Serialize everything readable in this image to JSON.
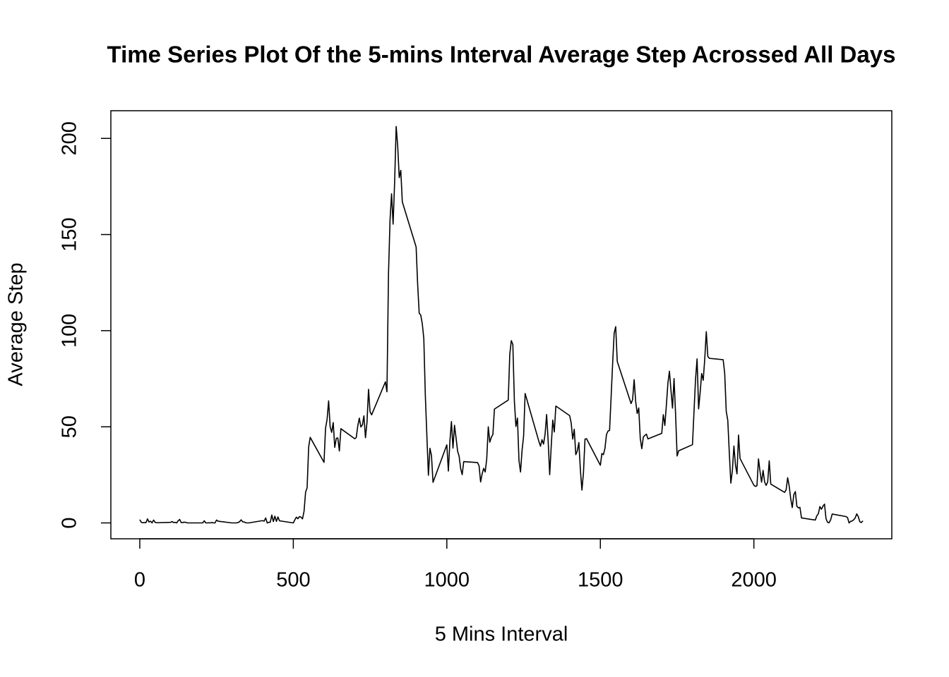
{
  "chart_data": {
    "type": "line",
    "title": "Time Series Plot Of the 5-mins Interval Average Step Acrossed All Days",
    "x_label": "5 Mins Interval",
    "y_label": "Average Step",
    "x": [
      0,
      5,
      10,
      15,
      20,
      25,
      30,
      35,
      40,
      45,
      50,
      55,
      100,
      105,
      110,
      115,
      120,
      125,
      130,
      135,
      140,
      145,
      150,
      155,
      200,
      205,
      210,
      215,
      220,
      225,
      230,
      235,
      240,
      245,
      250,
      255,
      300,
      305,
      310,
      315,
      320,
      325,
      330,
      335,
      340,
      345,
      350,
      355,
      400,
      405,
      410,
      415,
      420,
      425,
      430,
      435,
      440,
      445,
      450,
      455,
      500,
      505,
      510,
      515,
      520,
      525,
      530,
      535,
      540,
      545,
      550,
      555,
      600,
      605,
      610,
      615,
      620,
      625,
      630,
      635,
      640,
      645,
      650,
      655,
      700,
      705,
      710,
      715,
      720,
      725,
      730,
      735,
      740,
      745,
      750,
      755,
      800,
      805,
      810,
      815,
      820,
      825,
      830,
      835,
      840,
      845,
      850,
      855,
      900,
      905,
      910,
      915,
      920,
      925,
      930,
      935,
      940,
      945,
      950,
      955,
      1000,
      1005,
      1010,
      1015,
      1020,
      1025,
      1030,
      1035,
      1040,
      1045,
      1050,
      1055,
      1100,
      1105,
      1110,
      1115,
      1120,
      1125,
      1130,
      1135,
      1140,
      1145,
      1150,
      1155,
      1200,
      1205,
      1210,
      1215,
      1220,
      1225,
      1230,
      1235,
      1240,
      1245,
      1250,
      1255,
      1300,
      1305,
      1310,
      1315,
      1320,
      1325,
      1330,
      1335,
      1340,
      1345,
      1350,
      1355,
      1400,
      1405,
      1410,
      1415,
      1420,
      1425,
      1430,
      1435,
      1440,
      1445,
      1450,
      1455,
      1500,
      1505,
      1510,
      1515,
      1520,
      1525,
      1530,
      1535,
      1540,
      1545,
      1550,
      1555,
      1600,
      1605,
      1610,
      1615,
      1620,
      1625,
      1630,
      1635,
      1640,
      1645,
      1650,
      1655,
      1700,
      1705,
      1710,
      1715,
      1720,
      1725,
      1730,
      1735,
      1740,
      1745,
      1750,
      1755,
      1800,
      1805,
      1810,
      1815,
      1820,
      1825,
      1830,
      1835,
      1840,
      1845,
      1850,
      1855,
      1900,
      1905,
      1910,
      1915,
      1920,
      1925,
      1930,
      1935,
      1940,
      1945,
      1950,
      1955,
      2000,
      2005,
      2010,
      2015,
      2020,
      2025,
      2030,
      2035,
      2040,
      2045,
      2050,
      2055,
      2100,
      2105,
      2110,
      2115,
      2120,
      2125,
      2130,
      2135,
      2140,
      2145,
      2150,
      2155,
      2200,
      2205,
      2210,
      2215,
      2220,
      2225,
      2230,
      2235,
      2240,
      2245,
      2250,
      2255,
      2300,
      2305,
      2310,
      2315,
      2320,
      2325,
      2330,
      2335,
      2340,
      2345,
      2350,
      2355
    ],
    "series": [
      {
        "name": "Average Step",
        "color": "#000000",
        "values": [
          1.7,
          0.3,
          0.1,
          0.2,
          0.1,
          2.1,
          0.5,
          0.9,
          0,
          1.5,
          0.3,
          0.1,
          0.3,
          0.7,
          0.2,
          0.3,
          0,
          1.1,
          1.8,
          0.2,
          0.2,
          0.4,
          0.3,
          0,
          0,
          0,
          1.1,
          0,
          0,
          0.1,
          0,
          0.2,
          0,
          0,
          1.5,
          0.9,
          0,
          0,
          0,
          0,
          0.2,
          0.6,
          1.6,
          0.6,
          0.5,
          0.1,
          0,
          0,
          1.2,
          0.9,
          2.6,
          0,
          0.3,
          0.4,
          4.1,
          0.7,
          3.5,
          0.8,
          3.1,
          1.1,
          0,
          1.6,
          3.0,
          2.2,
          3.3,
          3.0,
          2.1,
          6.1,
          16.0,
          18.3,
          39.5,
          44.5,
          31.5,
          49.3,
          53.8,
          63.5,
          50.0,
          47.1,
          52.2,
          39.3,
          44.0,
          44.2,
          37.4,
          49.0,
          43.8,
          44.4,
          50.5,
          54.5,
          49.9,
          51.0,
          55.7,
          44.3,
          52.3,
          69.5,
          57.8,
          56.2,
          73.4,
          68.2,
          129.4,
          157.5,
          171.2,
          155.4,
          177.3,
          206.2,
          195.9,
          179.6,
          183.4,
          167.0,
          143.5,
          124.0,
          109.1,
          108.1,
          103.7,
          96.0,
          66.2,
          45.2,
          24.8,
          38.8,
          35.0,
          21.1,
          40.6,
          27.0,
          42.4,
          52.7,
          38.9,
          50.8,
          44.3,
          37.4,
          34.7,
          28.3,
          25.1,
          31.9,
          31.4,
          29.7,
          21.3,
          25.5,
          28.4,
          26.5,
          33.4,
          50.0,
          42.0,
          44.6,
          46.0,
          59.2,
          63.9,
          87.7,
          94.8,
          92.8,
          63.4,
          50.2,
          54.5,
          32.4,
          26.5,
          37.7,
          45.1,
          67.3,
          42.3,
          39.9,
          43.3,
          41.0,
          46.2,
          56.4,
          42.8,
          25.1,
          40.0,
          53.5,
          47.3,
          60.8,
          55.8,
          52.0,
          43.6,
          48.7,
          35.5,
          37.5,
          41.8,
          27.5,
          17.1,
          26.1,
          43.6,
          43.8,
          30.0,
          36.1,
          35.5,
          38.8,
          46.0,
          47.8,
          48.1,
          65.3,
          82.9,
          98.7,
          102.1,
          84.0,
          62.1,
          64.1,
          74.5,
          63.2,
          56.9,
          59.8,
          43.9,
          38.6,
          44.7,
          45.5,
          46.2,
          43.7,
          46.6,
          56.3,
          50.7,
          61.2,
          72.7,
          78.9,
          68.9,
          59.7,
          75.1,
          56.5,
          34.8,
          37.5,
          40.7,
          58.0,
          74.7,
          85.3,
          59.3,
          67.8,
          77.7,
          74.2,
          85.3,
          99.5,
          86.6,
          85.6,
          84.9,
          77.8,
          58.0,
          53.4,
          36.3,
          20.7,
          27.4,
          40.0,
          30.2,
          25.5,
          45.7,
          33.5,
          19.6,
          19.0,
          19.3,
          33.3,
          26.8,
          21.2,
          27.3,
          21.3,
          19.5,
          21.3,
          32.3,
          20.2,
          15.9,
          17.2,
          23.5,
          19.2,
          12.5,
          8.0,
          14.7,
          16.3,
          8.7,
          7.8,
          8.1,
          2.6,
          1.5,
          3.7,
          4.8,
          8.5,
          7.1,
          8.7,
          9.8,
          2.2,
          0.3,
          0.1,
          1.6,
          4.6,
          3.3,
          2.8,
          0,
          0.8,
          1.0,
          1.6,
          2.6,
          4.7,
          3.3,
          0.6,
          0.2,
          1.1
        ]
      }
    ],
    "xlim": [
      -94.2,
      2449.2
    ],
    "xticks": [
      0,
      500,
      1000,
      1500,
      2000
    ],
    "ylim": [
      -8.25,
      214.4
    ],
    "yticks": [
      0,
      50,
      100,
      150,
      200
    ],
    "grid": false
  }
}
